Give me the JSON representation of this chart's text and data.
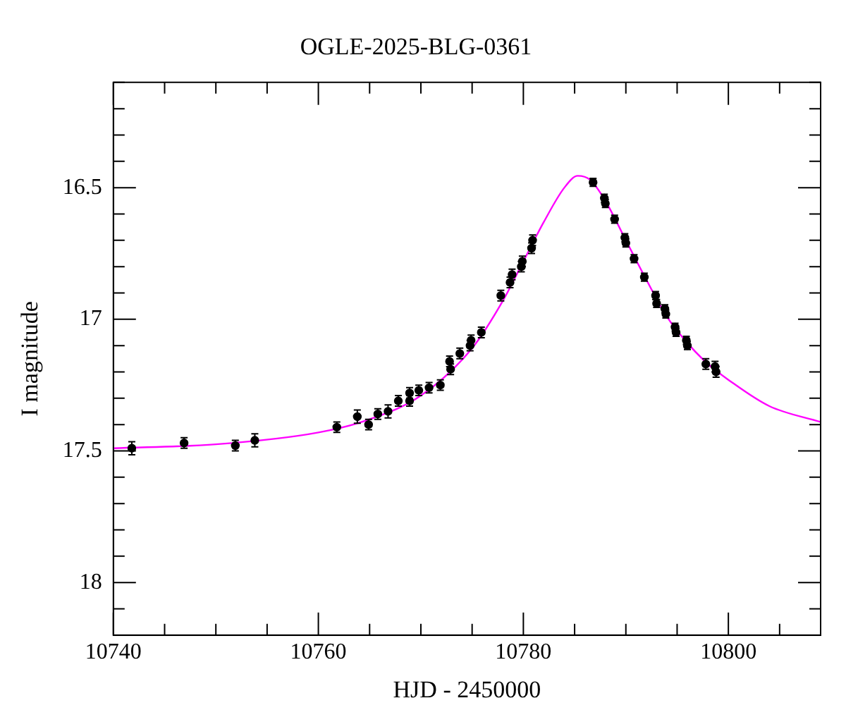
{
  "chart_data": {
    "type": "scatter",
    "title": "OGLE-2025-BLG-0361",
    "xlabel": "HJD - 2450000",
    "ylabel": "I magnitude",
    "xlim": [
      10740,
      10809
    ],
    "xticks": [
      10740,
      {
        "value": 10745,
        "label": null
      },
      {
        "value": 10750,
        "label": null
      },
      {
        "value": 10755,
        "label": null
      },
      10760,
      {
        "value": 10765,
        "label": null
      },
      {
        "value": 10770,
        "label": null
      },
      {
        "value": 10775,
        "label": null
      },
      10780,
      {
        "value": 10785,
        "label": null
      },
      {
        "value": 10790,
        "label": null
      },
      {
        "value": 10795,
        "label": null
      },
      10800,
      {
        "value": 10805,
        "label": null
      }
    ],
    "ylim": [
      18.2,
      16.1
    ],
    "yticks": [
      {
        "value": 16.1,
        "label": null
      },
      {
        "value": 16.2,
        "label": null
      },
      {
        "value": 16.3,
        "label": null
      },
      {
        "value": 16.4,
        "label": null
      },
      16.5,
      {
        "value": 16.6,
        "label": null
      },
      {
        "value": 16.7,
        "label": null
      },
      {
        "value": 16.8,
        "label": null
      },
      {
        "value": 16.9,
        "label": null
      },
      17,
      {
        "value": 17.1,
        "label": null
      },
      {
        "value": 17.2,
        "label": null
      },
      {
        "value": 17.3,
        "label": null
      },
      {
        "value": 17.4,
        "label": null
      },
      17.5,
      {
        "value": 17.6,
        "label": null
      },
      {
        "value": 17.7,
        "label": null
      },
      {
        "value": 17.8,
        "label": null
      },
      {
        "value": 17.9,
        "label": null
      },
      18,
      {
        "value": 18.1,
        "label": null
      }
    ],
    "series": [
      {
        "color": "#000000",
        "marker": "circle",
        "x": [
          10741.8,
          10746.9,
          10751.9,
          10753.8,
          10761.8,
          10763.8,
          10764.9,
          10765.8,
          10766.8,
          10767.8,
          10768.9,
          10768.9,
          10769.8,
          10770.8,
          10771.9,
          10772.8,
          10772.9,
          10773.8,
          10774.8,
          10774.9,
          10775.9,
          10777.8,
          10778.7,
          10778.9,
          10779.8,
          10779.9,
          10780.8,
          10780.9,
          10786.8,
          10787.9,
          10788.0,
          10788.9,
          10789.9,
          10790.0,
          10790.8,
          10791.8,
          10792.9,
          10793.0,
          10793.8,
          10793.9,
          10794.8,
          10794.9,
          10795.9,
          10796.0,
          10797.8,
          10798.7,
          10798.8
        ],
        "values": [
          17.49,
          17.47,
          17.48,
          17.46,
          17.41,
          17.37,
          17.4,
          17.36,
          17.35,
          17.31,
          17.31,
          17.28,
          17.27,
          17.26,
          17.25,
          17.16,
          17.19,
          17.13,
          17.1,
          17.08,
          17.05,
          16.91,
          16.86,
          16.83,
          16.8,
          16.78,
          16.73,
          16.7,
          16.48,
          16.54,
          16.56,
          16.62,
          16.69,
          16.71,
          16.77,
          16.84,
          16.91,
          16.94,
          16.96,
          16.98,
          17.03,
          17.05,
          17.08,
          17.1,
          17.17,
          17.18,
          17.2
        ],
        "errors": [
          0.025,
          0.02,
          0.02,
          0.025,
          0.02,
          0.025,
          0.02,
          0.02,
          0.025,
          0.02,
          0.02,
          0.02,
          0.02,
          0.02,
          0.02,
          0.02,
          0.02,
          0.02,
          0.02,
          0.02,
          0.02,
          0.02,
          0.02,
          0.02,
          0.02,
          0.02,
          0.02,
          0.02,
          0.015,
          0.015,
          0.015,
          0.015,
          0.015,
          0.015,
          0.015,
          0.015,
          0.015,
          0.015,
          0.015,
          0.015,
          0.015,
          0.015,
          0.015,
          0.015,
          0.02,
          0.02,
          0.02
        ]
      },
      {
        "type": "line",
        "color": "#ff00ff",
        "marker": "none",
        "x": [
          10740,
          10750,
          10760,
          10765,
          10770,
          10775,
          10778,
          10780,
          10782,
          10784,
          10785.3,
          10786.5,
          10788,
          10790,
          10792,
          10794,
          10796,
          10798,
          10800,
          10804,
          10809
        ],
        "values": [
          17.49,
          17.475,
          17.43,
          17.38,
          17.29,
          17.11,
          16.93,
          16.78,
          16.63,
          16.5,
          16.455,
          16.47,
          16.55,
          16.7,
          16.85,
          16.99,
          17.09,
          17.17,
          17.23,
          17.33,
          17.39
        ]
      }
    ]
  }
}
